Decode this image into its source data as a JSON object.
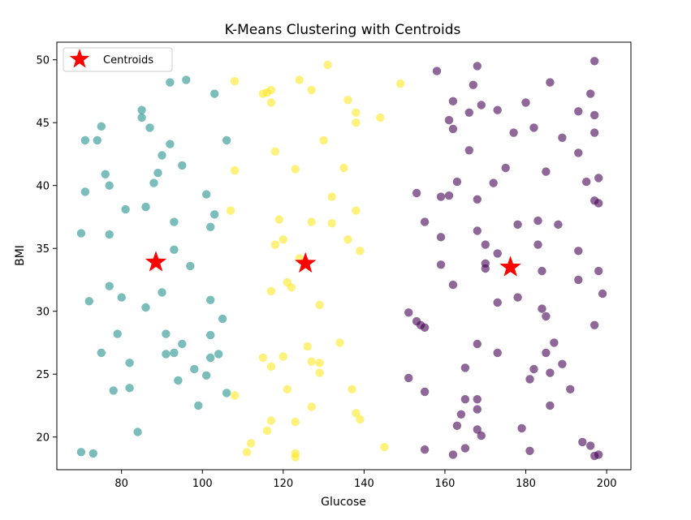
{
  "chart_data": {
    "type": "scatter",
    "title": "K-Means Clustering with Centroids",
    "xlabel": "Glucose",
    "ylabel": "BMI",
    "xlim": [
      64,
      206
    ],
    "ylim": [
      17.4,
      51.4
    ],
    "xticks": [
      80,
      100,
      120,
      140,
      160,
      180,
      200
    ],
    "yticks": [
      20,
      25,
      30,
      35,
      40,
      45,
      50
    ],
    "grid": false,
    "legend": {
      "placement": "top-left",
      "entries": [
        "Centroids"
      ]
    },
    "colors": {
      "cluster_0": "#440154",
      "cluster_1": "#21918c",
      "cluster_2": "#fde725",
      "centroid": "#ff0000"
    },
    "series": [
      {
        "color_key": "cluster_0",
        "points": [
          [
            158,
            49.1
          ],
          [
            168,
            49.5
          ],
          [
            197,
            49.9
          ],
          [
            167,
            48
          ],
          [
            186,
            48.2
          ],
          [
            196,
            47.3
          ],
          [
            162,
            46.7
          ],
          [
            169,
            46.4
          ],
          [
            180,
            46.6
          ],
          [
            166,
            45.8
          ],
          [
            173,
            46
          ],
          [
            193,
            45.9
          ],
          [
            161,
            45.2
          ],
          [
            197,
            45.6
          ],
          [
            162,
            44.5
          ],
          [
            177,
            44.2
          ],
          [
            182,
            44.6
          ],
          [
            189,
            43.8
          ],
          [
            197,
            44.2
          ],
          [
            166,
            42.8
          ],
          [
            193,
            42.6
          ],
          [
            175,
            41.4
          ],
          [
            185,
            41.1
          ],
          [
            163,
            40.3
          ],
          [
            172,
            40.2
          ],
          [
            195,
            40.3
          ],
          [
            198,
            40.6
          ],
          [
            153,
            39.4
          ],
          [
            159,
            39.1
          ],
          [
            161,
            39.2
          ],
          [
            168,
            38.9
          ],
          [
            197,
            38.8
          ],
          [
            198,
            38.6
          ],
          [
            155,
            37.1
          ],
          [
            178,
            36.9
          ],
          [
            183,
            37.2
          ],
          [
            188,
            36.9
          ],
          [
            168,
            36.4
          ],
          [
            159,
            35.9
          ],
          [
            170,
            35.3
          ],
          [
            183,
            35.3
          ],
          [
            173,
            34.6
          ],
          [
            193,
            34.8
          ],
          [
            170,
            33.8
          ],
          [
            170,
            33.4
          ],
          [
            159,
            33.7
          ],
          [
            184,
            33.2
          ],
          [
            198,
            33.2
          ],
          [
            193,
            32.5
          ],
          [
            162,
            32.1
          ],
          [
            178,
            31.1
          ],
          [
            199,
            31.4
          ],
          [
            173,
            30.7
          ],
          [
            184,
            30.2
          ],
          [
            185,
            29.6
          ],
          [
            151,
            29.9
          ],
          [
            153,
            29.2
          ],
          [
            154,
            28.9
          ],
          [
            155,
            28.7
          ],
          [
            197,
            28.9
          ],
          [
            187,
            27.5
          ],
          [
            168,
            27.4
          ],
          [
            173,
            26.7
          ],
          [
            185,
            26.7
          ],
          [
            189,
            25.8
          ],
          [
            165,
            25.5
          ],
          [
            182,
            25.4
          ],
          [
            186,
            25.1
          ],
          [
            151,
            24.7
          ],
          [
            181,
            24.6
          ],
          [
            191,
            23.8
          ],
          [
            155,
            23.6
          ],
          [
            165,
            23
          ],
          [
            168,
            23
          ],
          [
            168,
            22.2
          ],
          [
            186,
            22.5
          ],
          [
            164,
            21.8
          ],
          [
            163,
            20.9
          ],
          [
            168,
            20.6
          ],
          [
            179,
            20.7
          ],
          [
            169,
            20.1
          ],
          [
            194,
            19.6
          ],
          [
            196,
            19.3
          ],
          [
            155,
            19
          ],
          [
            165,
            19.1
          ],
          [
            181,
            18.9
          ],
          [
            162,
            18.6
          ],
          [
            197,
            18.5
          ],
          [
            198,
            18.6
          ]
        ]
      },
      {
        "color_key": "cluster_1",
        "points": [
          [
            96,
            48.4
          ],
          [
            92,
            48.2
          ],
          [
            103,
            47.3
          ],
          [
            85,
            46
          ],
          [
            85,
            45.4
          ],
          [
            75,
            44.7
          ],
          [
            87,
            44.6
          ],
          [
            71,
            43.6
          ],
          [
            74,
            43.6
          ],
          [
            106,
            43.6
          ],
          [
            92,
            43.3
          ],
          [
            90,
            42.4
          ],
          [
            95,
            41.6
          ],
          [
            76,
            40.9
          ],
          [
            89,
            41
          ],
          [
            77,
            40
          ],
          [
            88,
            40.2
          ],
          [
            71,
            39.5
          ],
          [
            101,
            39.3
          ],
          [
            81,
            38.1
          ],
          [
            86,
            38.3
          ],
          [
            103,
            37.7
          ],
          [
            93,
            37.1
          ],
          [
            102,
            36.7
          ],
          [
            70,
            36.2
          ],
          [
            77,
            36.1
          ],
          [
            93,
            34.9
          ],
          [
            97,
            33.6
          ],
          [
            77,
            32
          ],
          [
            90,
            31.5
          ],
          [
            80,
            31.1
          ],
          [
            72,
            30.8
          ],
          [
            102,
            30.9
          ],
          [
            86,
            30.3
          ],
          [
            105,
            29.4
          ],
          [
            79,
            28.2
          ],
          [
            91,
            28.2
          ],
          [
            102,
            28.1
          ],
          [
            95,
            27.4
          ],
          [
            75,
            26.7
          ],
          [
            91,
            26.6
          ],
          [
            93,
            26.7
          ],
          [
            104,
            26.6
          ],
          [
            102,
            26.3
          ],
          [
            82,
            25.9
          ],
          [
            98,
            25.4
          ],
          [
            101,
            24.9
          ],
          [
            94,
            24.5
          ],
          [
            82,
            23.9
          ],
          [
            78,
            23.7
          ],
          [
            106,
            23.5
          ],
          [
            99,
            22.5
          ],
          [
            84,
            20.4
          ],
          [
            70,
            18.8
          ],
          [
            73,
            18.7
          ]
        ]
      },
      {
        "color_key": "cluster_2",
        "points": [
          [
            131,
            49.6
          ],
          [
            108,
            48.3
          ],
          [
            124,
            48.4
          ],
          [
            149,
            48.1
          ],
          [
            116,
            47.4
          ],
          [
            117,
            47.6
          ],
          [
            115,
            47.3
          ],
          [
            127,
            47.6
          ],
          [
            117,
            46.6
          ],
          [
            136,
            46.8
          ],
          [
            138,
            45.8
          ],
          [
            144,
            45.4
          ],
          [
            138,
            45
          ],
          [
            130,
            43.6
          ],
          [
            118,
            42.7
          ],
          [
            135,
            41.4
          ],
          [
            108,
            41.2
          ],
          [
            123,
            41.3
          ],
          [
            132,
            39.1
          ],
          [
            107,
            38
          ],
          [
            138,
            38
          ],
          [
            119,
            37.3
          ],
          [
            127,
            37.1
          ],
          [
            132,
            37
          ],
          [
            120,
            35.7
          ],
          [
            118,
            35.3
          ],
          [
            136,
            35.7
          ],
          [
            139,
            34.8
          ],
          [
            124,
            34.2
          ],
          [
            121,
            32.3
          ],
          [
            122,
            31.9
          ],
          [
            117,
            31.6
          ],
          [
            129,
            30.5
          ],
          [
            134,
            27.5
          ],
          [
            126,
            27.2
          ],
          [
            115,
            26.3
          ],
          [
            120,
            26.4
          ],
          [
            127,
            26
          ],
          [
            129,
            25.9
          ],
          [
            117,
            25.6
          ],
          [
            129,
            25.1
          ],
          [
            137,
            23.8
          ],
          [
            121,
            23.8
          ],
          [
            108,
            23.3
          ],
          [
            138,
            21.9
          ],
          [
            139,
            21.4
          ],
          [
            127,
            22.4
          ],
          [
            117,
            21.3
          ],
          [
            123,
            21.2
          ],
          [
            116,
            20.5
          ],
          [
            112,
            19.5
          ],
          [
            145,
            19.2
          ],
          [
            111,
            18.8
          ],
          [
            123,
            18.7
          ],
          [
            123,
            18.4
          ]
        ]
      }
    ],
    "centroids": [
      [
        88.5,
        33.9
      ],
      [
        125.5,
        33.8
      ],
      [
        176.2,
        33.5
      ]
    ]
  }
}
